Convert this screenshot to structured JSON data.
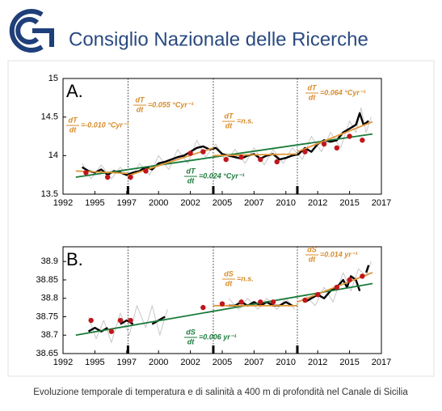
{
  "header": {
    "title": "Consiglio Nazionale delle Ricerche"
  },
  "caption": "Evoluzione temporale di temperatura e di salinità a 400 m di profondità nel Canale di Sicilia",
  "chart_data": [
    {
      "type": "line",
      "panel_label": "A.",
      "xlim": [
        1992,
        2017
      ],
      "xticks": [
        {
          "value": 1992,
          "label": "1992"
        },
        {
          "value": 1994.5,
          "label": "1995"
        },
        {
          "value": 1997,
          "label": "1997"
        },
        {
          "value": 1999.5,
          "label": "2000"
        },
        {
          "value": 2002,
          "label": "2002"
        },
        {
          "value": 2004.5,
          "label": "2005"
        },
        {
          "value": 2007,
          "label": "2007"
        },
        {
          "value": 2009.5,
          "label": "2010"
        },
        {
          "value": 2012,
          "label": "2012"
        },
        {
          "value": 2014.5,
          "label": "2015"
        },
        {
          "value": 2017,
          "label": "2017"
        }
      ],
      "ylim": [
        13.5,
        15
      ],
      "yticks": [
        13.5,
        14,
        14.5,
        15
      ],
      "breaks": [
        1997.1,
        2003.8,
        2010.4
      ],
      "series": [
        {
          "style": "line",
          "color": "#c8c8c8",
          "x": [
            1993.5,
            1994.2,
            1995,
            1995.8,
            1996.5,
            1997.3,
            1998,
            1998.8,
            1999.5,
            2000.3,
            2001,
            2001.8,
            2002.5,
            2003.2,
            2004,
            2004.8,
            2005.5,
            2006.3,
            2007,
            2007.8,
            2008.5,
            2009.3,
            2010,
            2010.8,
            2011.5,
            2012.3,
            2013,
            2013.8,
            2014.5,
            2015,
            2015.4,
            2015.8,
            2016.2
          ],
          "values": [
            13.9,
            13.7,
            13.88,
            13.7,
            13.85,
            13.68,
            13.9,
            13.75,
            14.0,
            13.82,
            14.08,
            13.9,
            14.2,
            13.98,
            14.15,
            13.92,
            14.08,
            13.9,
            14.1,
            13.88,
            14.08,
            13.9,
            14.1,
            13.95,
            14.25,
            14.05,
            14.3,
            14.1,
            14.45,
            14.3,
            14.62,
            14.3,
            14.5
          ]
        },
        {
          "style": "line",
          "color": "#000000",
          "x": [
            1993.5,
            1994,
            1994.5,
            1995,
            1995.5,
            1996,
            1996.5,
            1997,
            1997.5,
            1998,
            1998.5,
            1999,
            1999.5,
            2000,
            2000.5,
            2001,
            2001.5,
            2002,
            2002.5,
            2003,
            2003.5,
            2004,
            2004.5,
            2005,
            2005.5,
            2006,
            2006.5,
            2007,
            2007.5,
            2008,
            2008.5,
            2009,
            2009.5,
            2010,
            2010.5,
            2011,
            2011.5,
            2012,
            2012.5,
            2013,
            2013.5,
            2014,
            2014.5,
            2015,
            2015.3,
            2015.6,
            2016
          ],
          "values": [
            13.85,
            13.8,
            13.78,
            13.82,
            13.75,
            13.8,
            13.78,
            13.75,
            13.78,
            13.8,
            13.85,
            13.82,
            13.9,
            13.92,
            13.95,
            13.98,
            14.0,
            14.05,
            14.1,
            14.12,
            14.08,
            14.1,
            14.02,
            14.0,
            13.98,
            13.96,
            14.0,
            14.02,
            13.96,
            14.0,
            14.02,
            13.95,
            13.97,
            14.0,
            14.02,
            14.1,
            14.05,
            14.15,
            14.2,
            14.18,
            14.2,
            14.3,
            14.35,
            14.4,
            14.55,
            14.4,
            14.45
          ]
        },
        {
          "style": "line",
          "color": "#1a7a3a",
          "x": [
            1993,
            2016.3
          ],
          "values": [
            13.72,
            14.28
          ]
        },
        {
          "style": "line",
          "color": "#e0963a",
          "x": [
            1993,
            1997.1
          ],
          "values": [
            13.8,
            13.77
          ]
        },
        {
          "style": "line",
          "color": "#e0963a",
          "x": [
            1997.1,
            2003.8
          ],
          "values": [
            13.74,
            14.1
          ]
        },
        {
          "style": "line",
          "color": "#e0963a",
          "x": [
            2003.8,
            2010.4
          ],
          "values": [
            14.0,
            14.02
          ]
        },
        {
          "style": "line",
          "color": "#e0963a",
          "x": [
            2010.4,
            2016.3
          ],
          "values": [
            14.05,
            14.44
          ]
        },
        {
          "style": "dots",
          "color": "#c0161c",
          "x": [
            1993.8,
            1995.5,
            1997.3,
            1998.5,
            2002,
            2003,
            2004.8,
            2006,
            2007.5,
            2008.8,
            2011,
            2012.5,
            2013.5,
            2014.5,
            2015.5
          ],
          "values": [
            13.78,
            13.72,
            13.72,
            13.8,
            14.03,
            14.05,
            13.95,
            13.98,
            13.95,
            13.92,
            14.05,
            14.15,
            14.1,
            14.25,
            14.2
          ]
        }
      ],
      "annotations": [
        {
          "numerator": "dT",
          "denominator": "dt",
          "text": "=-0.010 °Cyr⁻¹",
          "color": "#d98b2b"
        },
        {
          "numerator": "dT",
          "denominator": "dt",
          "text": "=0.055 °Cyr⁻¹",
          "color": "#d98b2b"
        },
        {
          "numerator": "dT",
          "denominator": "dt",
          "text": "=n.s.",
          "color": "#d98b2b"
        },
        {
          "numerator": "dT",
          "denominator": "dt",
          "text": "=0.064 °Cyr⁻¹",
          "color": "#d98b2b"
        },
        {
          "numerator": "dT",
          "denominator": "dt",
          "text": "=0.024 °Cyr⁻¹",
          "color": "#1a7a3a"
        }
      ]
    },
    {
      "type": "line",
      "panel_label": "B.",
      "xlim": [
        1992,
        2017
      ],
      "xticks": [
        {
          "value": 1992,
          "label": "1992"
        },
        {
          "value": 1994.5,
          "label": "1995"
        },
        {
          "value": 1997,
          "label": "1997"
        },
        {
          "value": 1999.5,
          "label": "2000"
        },
        {
          "value": 2002,
          "label": "2002"
        },
        {
          "value": 2004.5,
          "label": "2005"
        },
        {
          "value": 2007,
          "label": "2007"
        },
        {
          "value": 2009.5,
          "label": "2010"
        },
        {
          "value": 2012,
          "label": "2012"
        },
        {
          "value": 2014.5,
          "label": "2015"
        },
        {
          "value": 2017,
          "label": "2017"
        }
      ],
      "ylim": [
        38.65,
        38.94
      ],
      "yticks": [
        38.65,
        38.7,
        38.75,
        38.8,
        38.85,
        38.9
      ],
      "breaks": [
        1997.1,
        2003.8,
        2010.4
      ],
      "series": [
        {
          "style": "line",
          "color": "#c8c8c8",
          "x": [
            1994,
            1994.6,
            1995.2,
            1995.8,
            1996.5,
            1997.2,
            1997.8,
            1998.5,
            1999,
            1999.6,
            2000.2,
            null,
            2005,
            2005.8,
            2006.5,
            2007.3,
            2008,
            2008.8,
            2009.5,
            2010.2,
            null,
            2011,
            2011.8,
            2012.5,
            2013.2,
            2014,
            2014.6,
            2015.2,
            2015.8,
            2016.2
          ],
          "values": [
            38.75,
            38.69,
            38.74,
            38.68,
            38.76,
            38.7,
            38.78,
            38.72,
            38.78,
            38.7,
            38.77,
            null,
            38.8,
            38.77,
            38.8,
            38.77,
            38.8,
            38.77,
            38.8,
            38.77,
            null,
            38.81,
            38.78,
            38.83,
            38.79,
            38.87,
            38.82,
            38.88,
            38.86,
            38.9
          ]
        },
        {
          "style": "line",
          "color": "#000000",
          "x": [
            1994,
            1994.5,
            1995,
            1995.5,
            null,
            1996.5,
            1997,
            1997.5,
            null,
            1999,
            1999.5,
            2000,
            null,
            2005,
            2005.5,
            2006,
            2006.5,
            2007,
            2007.5,
            2008,
            2008.5,
            2009,
            2009.5,
            2010,
            null,
            2011,
            2011.5,
            2012,
            2012.5,
            2013,
            2013.5,
            2014,
            2014.3,
            2014.6,
            2015,
            2015.3,
            null,
            2015.8,
            2016
          ],
          "values": [
            38.71,
            38.72,
            38.71,
            38.72,
            null,
            38.73,
            38.74,
            38.73,
            null,
            38.73,
            38.74,
            38.75,
            null,
            38.78,
            38.78,
            38.79,
            38.78,
            38.79,
            38.78,
            38.79,
            38.78,
            38.78,
            38.79,
            38.78,
            null,
            38.79,
            38.8,
            38.81,
            38.8,
            38.82,
            38.83,
            38.85,
            38.83,
            38.86,
            38.85,
            38.82,
            null,
            38.87,
            38.89
          ]
        },
        {
          "style": "line",
          "color": "#1a7a3a",
          "x": [
            1993,
            2016.3
          ],
          "values": [
            38.7,
            38.84
          ]
        },
        {
          "style": "line",
          "color": "#e0963a",
          "x": [
            2003.8,
            2010.4
          ],
          "values": [
            38.78,
            38.78
          ]
        },
        {
          "style": "line",
          "color": "#e0963a",
          "x": [
            2010.4,
            2016.3
          ],
          "values": [
            38.79,
            38.87
          ]
        },
        {
          "style": "dots",
          "color": "#c0161c",
          "x": [
            1994.2,
            1995.8,
            1996.5,
            1997.3,
            2003,
            2004.5,
            2006,
            2007.5,
            2008.5,
            2011,
            2012,
            2013.5,
            2014.5,
            2015.5
          ],
          "values": [
            38.74,
            38.71,
            38.74,
            38.74,
            38.775,
            38.785,
            38.79,
            38.79,
            38.79,
            38.795,
            38.81,
            38.83,
            38.85,
            38.86
          ]
        }
      ],
      "annotations": [
        {
          "numerator": "dS",
          "denominator": "dt",
          "text": "=n.s.",
          "color": "#d98b2b"
        },
        {
          "numerator": "dS",
          "denominator": "dt",
          "text": "=0.014 yr⁻¹",
          "color": "#d98b2b"
        },
        {
          "numerator": "dS",
          "denominator": "dt",
          "text": "=0.006 yr⁻¹",
          "color": "#1a7a3a"
        }
      ]
    }
  ]
}
